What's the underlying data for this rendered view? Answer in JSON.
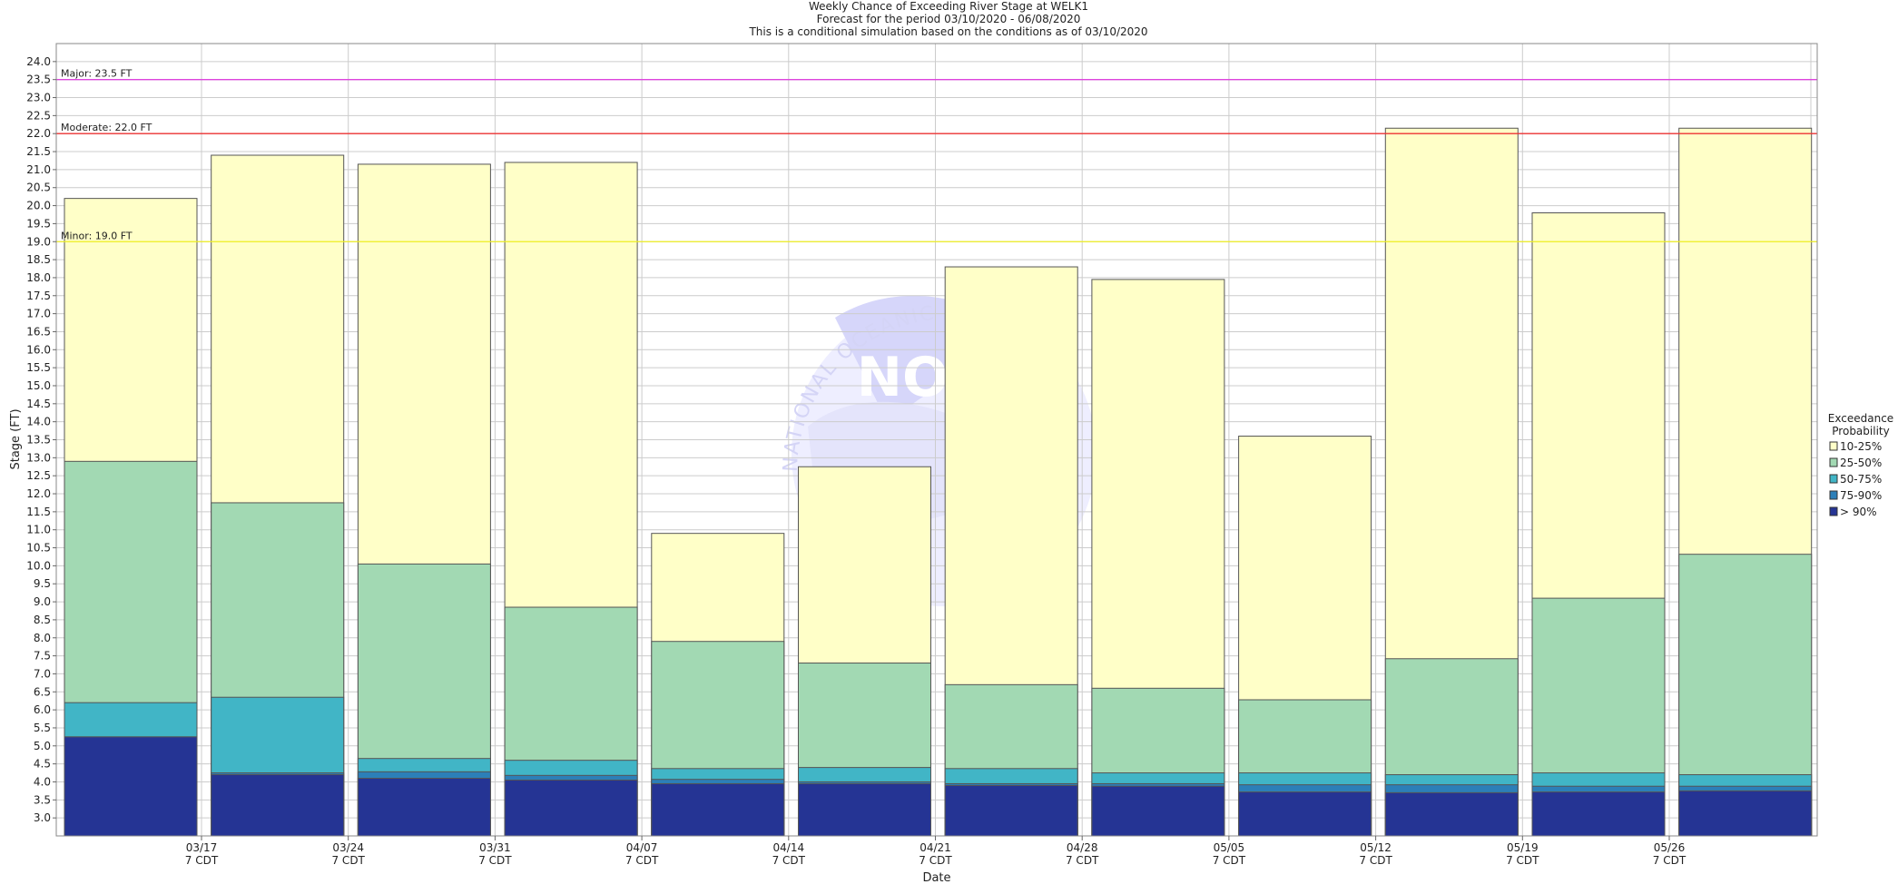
{
  "chart_data": {
    "type": "stacked-bar",
    "title": "Weekly Chance of Exceeding River Stage at WELK1",
    "subtitle": "Forecast for the period 03/10/2020 - 06/08/2020",
    "subtitle2": "This is a conditional simulation based on the conditions as of 03/10/2020",
    "xlabel": "Date",
    "ylabel": "Stage (FT)",
    "ylim": [
      2.5,
      24.5
    ],
    "yticks": [
      "3.0",
      "3.5",
      "4.0",
      "4.5",
      "5.0",
      "5.5",
      "6.0",
      "6.5",
      "7.0",
      "7.5",
      "8.0",
      "8.5",
      "9.0",
      "9.5",
      "10.0",
      "10.5",
      "11.0",
      "11.5",
      "12.0",
      "12.5",
      "13.0",
      "13.5",
      "14.0",
      "14.5",
      "15.0",
      "15.5",
      "16.0",
      "16.5",
      "17.0",
      "17.5",
      "18.0",
      "18.5",
      "19.0",
      "19.5",
      "20.0",
      "20.5",
      "21.0",
      "21.5",
      "22.0",
      "22.5",
      "23.0",
      "23.5",
      "24.0"
    ],
    "xticks": [
      {
        "date": "03/17",
        "tz": "7 CDT"
      },
      {
        "date": "03/24",
        "tz": "7 CDT"
      },
      {
        "date": "03/31",
        "tz": "7 CDT"
      },
      {
        "date": "04/07",
        "tz": "7 CDT"
      },
      {
        "date": "04/14",
        "tz": "7 CDT"
      },
      {
        "date": "04/21",
        "tz": "7 CDT"
      },
      {
        "date": "04/28",
        "tz": "7 CDT"
      },
      {
        "date": "05/05",
        "tz": "7 CDT"
      },
      {
        "date": "05/12",
        "tz": "7 CDT"
      },
      {
        "date": "05/19",
        "tz": "7 CDT"
      },
      {
        "date": "05/26",
        "tz": "7 CDT"
      }
    ],
    "grid": true,
    "thresholds": [
      {
        "label": "Major: 23.5 FT",
        "value": 23.5,
        "color": "#dd44dd"
      },
      {
        "label": "Moderate: 22.0 FT",
        "value": 22.0,
        "color": "#ee3333"
      },
      {
        "label": "Minor: 19.0 FT",
        "value": 19.0,
        "color": "#eeee22"
      }
    ],
    "legend": {
      "title_line1": "Exceedance",
      "title_line2": "Probability",
      "position": "right",
      "items": [
        {
          "label": "10-25%",
          "color": "#ffffc8"
        },
        {
          "label": "25-50%",
          "color": "#a2d9b3"
        },
        {
          "label": "50-75%",
          "color": "#41b5c6"
        },
        {
          "label": "75-90%",
          "color": "#2c7fb8"
        },
        {
          "label": "> 90%",
          "color": "#253494"
        }
      ]
    },
    "series_stage_tops": [
      {
        "name": "> 90%",
        "values": [
          5.25,
          4.2,
          4.1,
          4.05,
          3.95,
          3.95,
          3.9,
          3.88,
          3.72,
          3.7,
          3.72,
          3.75
        ]
      },
      {
        "name": "75-90%",
        "values": [
          5.25,
          4.25,
          4.28,
          4.18,
          4.07,
          4.0,
          3.95,
          3.95,
          3.92,
          3.92,
          3.88,
          3.88
        ]
      },
      {
        "name": "50-75%",
        "values": [
          6.2,
          6.35,
          4.65,
          4.6,
          4.37,
          4.4,
          4.37,
          4.25,
          4.25,
          4.2,
          4.25,
          4.2
        ]
      },
      {
        "name": "25-50%",
        "values": [
          12.9,
          11.75,
          10.05,
          8.85,
          7.9,
          7.3,
          6.7,
          6.6,
          6.28,
          7.42,
          9.1,
          10.32
        ]
      },
      {
        "name": "10-25%",
        "values": [
          20.2,
          21.4,
          21.15,
          21.2,
          10.9,
          12.75,
          18.3,
          17.95,
          13.6,
          22.15,
          19.8,
          22.15
        ]
      }
    ],
    "watermark": {
      "agency": "NATIONAL OCEANIC AND ATMOSPHERIC",
      "logo": "NOAA"
    }
  }
}
